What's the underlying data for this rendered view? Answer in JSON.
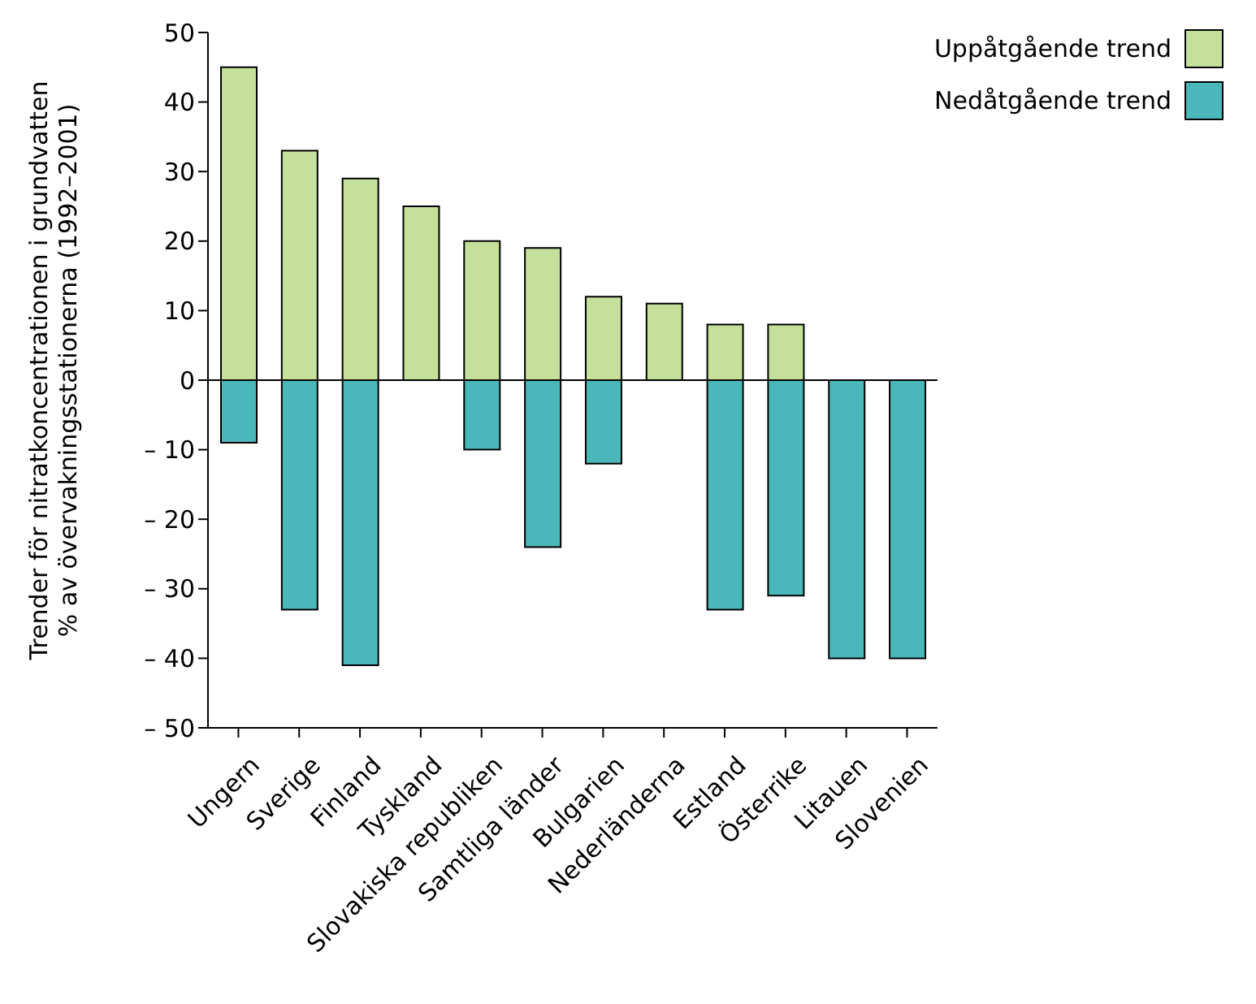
{
  "chart_data": {
    "type": "bar",
    "stacked": true,
    "ylabel": "Trender för nitratkoncentrationen i grundvatten\n% av övervakningsstationerna (1992–2001)",
    "categories": [
      "Ungern",
      "Sverige",
      "Finland",
      "Tyskland",
      "Slovakiska republiken",
      "Samtliga länder",
      "Bulgarien",
      "Nederländerna",
      "Estland",
      "Österrike",
      "Litauen",
      "Slovenien"
    ],
    "series": [
      {
        "name": "Uppåtgående trend",
        "color": "#c5e09b",
        "values": [
          45,
          33,
          29,
          25,
          20,
          19,
          12,
          11,
          8,
          8,
          0,
          0
        ]
      },
      {
        "name": "Nedåtgående trend",
        "color": "#4ab8bb",
        "values": [
          -9,
          -33,
          -41,
          0,
          -10,
          -24,
          -12,
          0,
          -33,
          -31,
          -40,
          -40
        ]
      }
    ],
    "ylim": [
      -50,
      50
    ],
    "yticks": [
      {
        "value": -50,
        "label": "– 50"
      },
      {
        "value": -40,
        "label": "– 40"
      },
      {
        "value": -30,
        "label": "– 30"
      },
      {
        "value": -20,
        "label": "– 20"
      },
      {
        "value": -10,
        "label": "– 10"
      },
      0,
      10,
      20,
      30,
      40,
      50
    ],
    "ref_lines": [
      {
        "axis": "y",
        "value": 0,
        "color": "#000000"
      }
    ],
    "grid": false,
    "legend": "top right"
  }
}
